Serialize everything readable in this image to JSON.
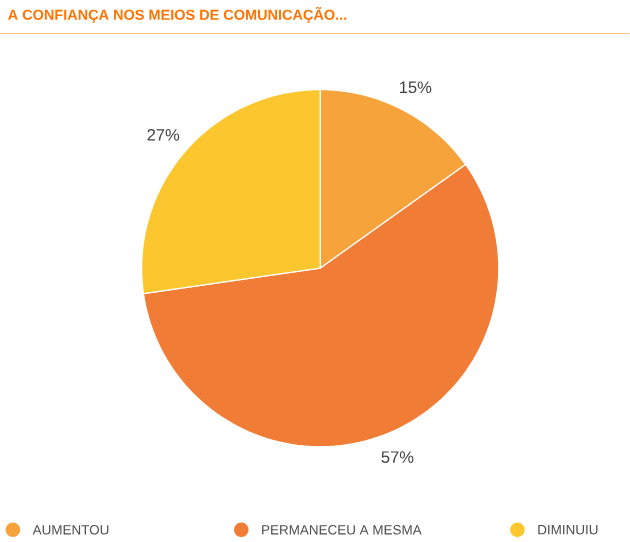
{
  "chart_data": {
    "type": "pie",
    "title": "A CONFIANÇA NOS MEIOS DE COMUNICAÇÃO...",
    "categories": [
      "AUMENTOU",
      "PERMANECEU A MESMA",
      "DIMINUIU"
    ],
    "values": [
      15,
      57,
      27
    ],
    "colors": [
      "#f7a33c",
      "#f07c36",
      "#fcc72e"
    ],
    "value_labels": [
      "15%",
      "57%",
      "27%"
    ],
    "legend": "bottom"
  }
}
